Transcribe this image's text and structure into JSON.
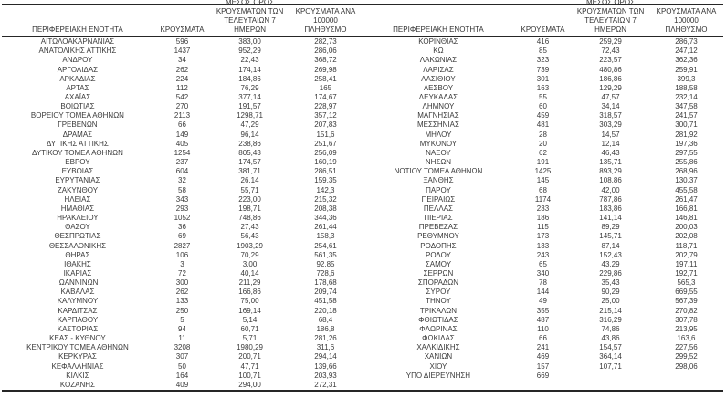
{
  "colors": {
    "text": "#3a3a3a",
    "border": "#262626",
    "background": "#ffffff"
  },
  "header": {
    "region": "ΠΕΡΙΦΕΡΕΙΑΚΗ ΕΝΟΤΗΤΑ",
    "cases": "ΚΡΟΥΣΜΑΤΑ",
    "avg7_lines": [
      "ΜΕΣΟΣ ΟΡΟΣ",
      "ΚΡΟΥΣΜΑΤΩΝ ΤΩΝ",
      "ΤΕΛΕΥΤΑΙΩΝ 7 ΗΜΕΡΩΝ"
    ],
    "per100k_lines": [
      "ΚΡΟΥΣΜΑΤΑ ΑΝΑ 100000",
      "ΠΛΗΘΥΣΜΟ"
    ]
  },
  "left_rows": [
    [
      "ΑΙΤΩΛΟΑΚΑΡΝΑΝΙΑΣ",
      "596",
      "383,00",
      "282,73"
    ],
    [
      "ΑΝΑΤΟΛΙΚΗΣ ΑΤΤΙΚΗΣ",
      "1437",
      "952,29",
      "286,06"
    ],
    [
      "ΑΝΔΡΟΥ",
      "34",
      "22,43",
      "368,72"
    ],
    [
      "ΑΡΓΟΛΙΔΑΣ",
      "262",
      "174,14",
      "269,98"
    ],
    [
      "ΑΡΚΑΔΙΑΣ",
      "224",
      "184,86",
      "258,41"
    ],
    [
      "ΑΡΤΑΣ",
      "112",
      "76,29",
      "165"
    ],
    [
      "ΑΧΑΪΑΣ",
      "542",
      "377,14",
      "174,67"
    ],
    [
      "ΒΟΙΩΤΙΑΣ",
      "270",
      "191,57",
      "228,97"
    ],
    [
      "ΒΟΡΕΙΟΥ ΤΟΜΕΑ ΑΘΗΝΩΝ",
      "2113",
      "1298,71",
      "357,12"
    ],
    [
      "ΓΡΕΒΕΝΩΝ",
      "66",
      "47,29",
      "207,83"
    ],
    [
      "ΔΡΑΜΑΣ",
      "149",
      "96,14",
      "151,6"
    ],
    [
      "ΔΥΤΙΚΗΣ ΑΤΤΙΚΗΣ",
      "405",
      "238,86",
      "251,67"
    ],
    [
      "ΔΥΤΙΚΟΥ ΤΟΜΕΑ ΑΘΗΝΩΝ",
      "1254",
      "805,43",
      "256,09"
    ],
    [
      "ΕΒΡΟΥ",
      "237",
      "174,57",
      "160,19"
    ],
    [
      "ΕΥΒΟΙΑΣ",
      "604",
      "381,71",
      "286,51"
    ],
    [
      "ΕΥΡΥΤΑΝΙΑΣ",
      "32",
      "26,14",
      "159,35"
    ],
    [
      "ΖΑΚΥΝΘΟΥ",
      "58",
      "55,71",
      "142,3"
    ],
    [
      "ΗΛΕΙΑΣ",
      "343",
      "223,00",
      "215,32"
    ],
    [
      "ΗΜΑΘΙΑΣ",
      "293",
      "198,71",
      "208,38"
    ],
    [
      "ΗΡΑΚΛΕΙΟΥ",
      "1052",
      "748,86",
      "344,36"
    ],
    [
      "ΘΑΣΟΥ",
      "36",
      "27,43",
      "261,44"
    ],
    [
      "ΘΕΣΠΡΩΤΙΑΣ",
      "69",
      "56,43",
      "158,3"
    ],
    [
      "ΘΕΣΣΑΛΟΝΙΚΗΣ",
      "2827",
      "1903,29",
      "254,61"
    ],
    [
      "ΘΗΡΑΣ",
      "106",
      "70,29",
      "561,35"
    ],
    [
      "ΙΘΑΚΗΣ",
      "3",
      "3,00",
      "92,85"
    ],
    [
      "ΙΚΑΡΙΑΣ",
      "72",
      "40,14",
      "728,6"
    ],
    [
      "ΙΩΑΝΝΙΝΩΝ",
      "300",
      "211,29",
      "178,68"
    ],
    [
      "ΚΑΒΑΛΑΣ",
      "262",
      "166,86",
      "209,74"
    ],
    [
      "ΚΑΛΥΜΝΟΥ",
      "133",
      "75,00",
      "451,58"
    ],
    [
      "ΚΑΡΔΙΤΣΑΣ",
      "250",
      "169,14",
      "220,18"
    ],
    [
      "ΚΑΡΠΑΘΟΥ",
      "5",
      "5,14",
      "68,4"
    ],
    [
      "ΚΑΣΤΟΡΙΑΣ",
      "94",
      "60,71",
      "186,8"
    ],
    [
      "ΚΕΑΣ - ΚΥΘΝΟΥ",
      "11",
      "5,71",
      "281,26"
    ],
    [
      "ΚΕΝΤΡΙΚΟΥ ΤΟΜΕΑ ΑΘΗΝΩΝ",
      "3208",
      "1980,29",
      "311,6"
    ],
    [
      "ΚΕΡΚΥΡΑΣ",
      "307",
      "200,71",
      "294,14"
    ],
    [
      "ΚΕΦΑΛΛΗΝΙΑΣ",
      "50",
      "47,71",
      "139,66"
    ],
    [
      "ΚΙΛΚΙΣ",
      "164",
      "100,71",
      "203,93"
    ],
    [
      "ΚΟΖΑΝΗΣ",
      "409",
      "294,00",
      "272,31"
    ]
  ],
  "right_rows": [
    [
      "ΚΟΡΙΝΘΙΑΣ",
      "416",
      "259,29",
      "286,73"
    ],
    [
      "ΚΩ",
      "85",
      "72,43",
      "247,12"
    ],
    [
      "ΛΑΚΩΝΙΑΣ",
      "323",
      "223,57",
      "362,36"
    ],
    [
      "ΛΑΡΙΣΑΣ",
      "739",
      "480,86",
      "259,91"
    ],
    [
      "ΛΑΣΙΘΙΟΥ",
      "301",
      "186,86",
      "399,3"
    ],
    [
      "ΛΕΣΒΟΥ",
      "163",
      "129,29",
      "188,58"
    ],
    [
      "ΛΕΥΚΑΔΑΣ",
      "55",
      "47,57",
      "232,14"
    ],
    [
      "ΛΗΜΝΟΥ",
      "60",
      "34,14",
      "347,58"
    ],
    [
      "ΜΑΓΝΗΣΙΑΣ",
      "459",
      "318,57",
      "241,57"
    ],
    [
      "ΜΕΣΣΗΝΙΑΣ",
      "481",
      "303,29",
      "300,71"
    ],
    [
      "ΜΗΛΟΥ",
      "28",
      "14,57",
      "281,92"
    ],
    [
      "ΜΥΚΟΝΟΥ",
      "20",
      "12,14",
      "197,36"
    ],
    [
      "ΝΑΞΟΥ",
      "62",
      "46,43",
      "297,55"
    ],
    [
      "ΝΗΣΩΝ",
      "191",
      "135,71",
      "255,86"
    ],
    [
      "ΝΟΤΙΟΥ ΤΟΜΕΑ ΑΘΗΝΩΝ",
      "1425",
      "893,29",
      "268,96"
    ],
    [
      "ΞΑΝΘΗΣ",
      "145",
      "108,86",
      "130,37"
    ],
    [
      "ΠΑΡΟΥ",
      "68",
      "42,00",
      "455,58"
    ],
    [
      "ΠΕΙΡΑΙΩΣ",
      "1174",
      "787,86",
      "261,47"
    ],
    [
      "ΠΕΛΛΑΣ",
      "233",
      "183,86",
      "166,81"
    ],
    [
      "ΠΙΕΡΙΑΣ",
      "186",
      "141,14",
      "146,81"
    ],
    [
      "ΠΡΕΒΕΖΑΣ",
      "115",
      "89,29",
      "200,03"
    ],
    [
      "ΡΕΘΥΜΝΟΥ",
      "173",
      "145,71",
      "202,08"
    ],
    [
      "ΡΟΔΟΠΗΣ",
      "133",
      "87,14",
      "118,71"
    ],
    [
      "ΡΟΔΟΥ",
      "243",
      "152,43",
      "202,79"
    ],
    [
      "ΣΑΜΟΥ",
      "65",
      "43,29",
      "197,11"
    ],
    [
      "ΣΕΡΡΩΝ",
      "340",
      "229,86",
      "192,71"
    ],
    [
      "ΣΠΟΡΑΔΩΝ",
      "78",
      "35,43",
      "565,3"
    ],
    [
      "ΣΥΡΟΥ",
      "144",
      "90,29",
      "669,55"
    ],
    [
      "ΤΗΝΟΥ",
      "49",
      "25,00",
      "567,39"
    ],
    [
      "ΤΡΙΚΑΛΩΝ",
      "355",
      "215,14",
      "270,82"
    ],
    [
      "ΦΘΙΩΤΙΔΑΣ",
      "487",
      "316,29",
      "307,78"
    ],
    [
      "ΦΛΩΡΙΝΑΣ",
      "110",
      "74,86",
      "213,95"
    ],
    [
      "ΦΩΚΙΔΑΣ",
      "66",
      "43,86",
      "163,6"
    ],
    [
      "ΧΑΛΚΙΔΙΚΗΣ",
      "241",
      "154,57",
      "227,56"
    ],
    [
      "ΧΑΝΙΩΝ",
      "469",
      "364,14",
      "299,52"
    ],
    [
      "ΧΙΟΥ",
      "157",
      "107,71",
      "298,06"
    ],
    [
      "ΥΠΟ ΔΙΕΡΕΥΝΗΣΗ",
      "669",
      "",
      ""
    ]
  ]
}
